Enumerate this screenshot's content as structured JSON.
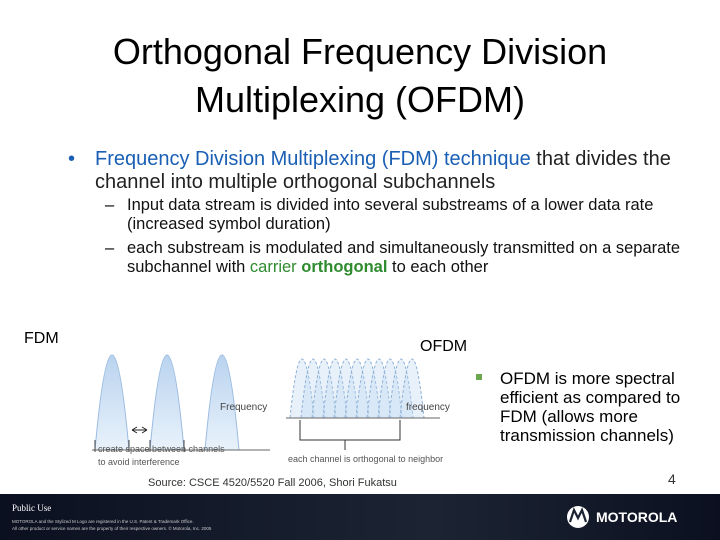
{
  "slide": {
    "title": "Orthogonal Frequency Division Multiplexing (OFDM)",
    "bullet": {
      "highlight": "Frequency Division Multiplexing (FDM) technique",
      "rest": "that divides the channel into multiple orthogonal subchannels"
    },
    "sub_bullets": [
      {
        "text": "Input data stream is divided into several substreams of a lower data rate (increased symbol duration)"
      },
      {
        "text": "each substream is modulated and simultaneously transmitted on a separate subchannel with",
        "carrier": "carrier",
        "orthogonal": "orthogonal",
        "tail": "to each other"
      }
    ],
    "figure": {
      "fdm_label": "FDM",
      "ofdm_label": "OFDM",
      "fdm_axis": "Frequency",
      "ofdm_axis": "frequency",
      "fdm_note": "create space between channels to avoid interference",
      "ofdm_note": "each channel is orthogonal to neighbor",
      "source": "Source: CSCE 4520/5520 Fall 2006, Shori Fukatsu"
    },
    "side_bullet": "OFDM is more spectral efficient as compared to FDM (allows more transmission channels)",
    "page_number": "4",
    "footer": {
      "classification": "Public Use",
      "legal_1": "MOTOROLA and the Stylized M Logo are registered in the U.S. Patent & Trademark Office.",
      "legal_2": "All other product or service names are the property of their respective owners. © Motorola, Inc. 2005",
      "brand": "MOTOROLA"
    }
  }
}
